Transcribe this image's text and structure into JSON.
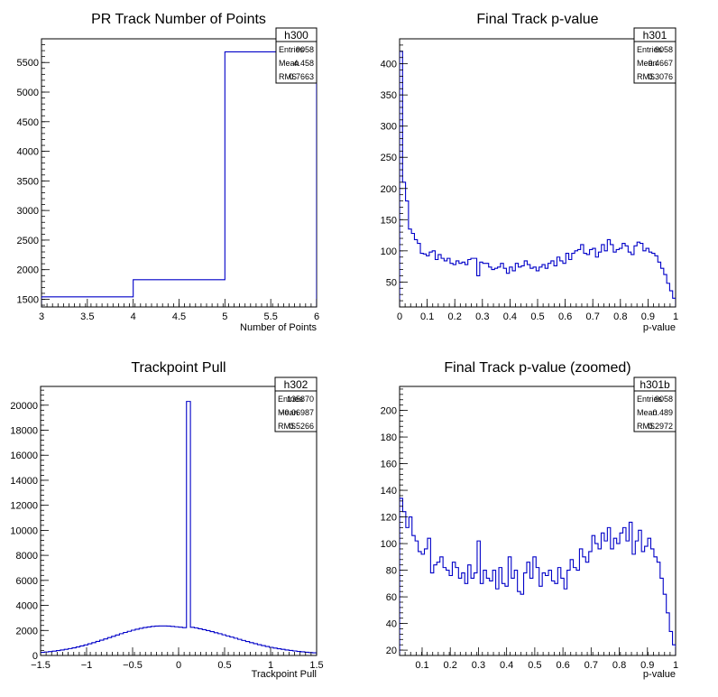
{
  "chart_data": [
    {
      "type": "histogram",
      "title": "PR Track Number of Points",
      "xlabel": "Number of Points",
      "ylabel": "",
      "xlim": [
        3,
        6
      ],
      "ylim": [
        1370,
        5900
      ],
      "xticks": [
        3,
        3.5,
        4,
        4.5,
        5,
        5.5,
        6
      ],
      "xtick_labels": [
        "3",
        "3.5",
        "4",
        "4.5",
        "5",
        "5.5",
        "6"
      ],
      "yticks": [
        1500,
        2000,
        2500,
        3000,
        3500,
        4000,
        4500,
        5000,
        5500
      ],
      "ytick_labels": [
        "1500",
        "2000",
        "2500",
        "3000",
        "3500",
        "4000",
        "4500",
        "5000",
        "5500"
      ],
      "bin_edges": [
        3,
        4,
        5,
        6
      ],
      "values": [
        1540,
        1830,
        5680
      ],
      "stats": {
        "name": "h300",
        "entries_label": "Entries",
        "entries": "9058",
        "mean_label": "Mean",
        "mean": "4.458",
        "rms_label": "RMS",
        "rms": "0.7663"
      }
    },
    {
      "type": "histogram",
      "title": "Final Track p-value",
      "xlabel": "p-value",
      "ylabel": "",
      "xlim": [
        0,
        1
      ],
      "ylim": [
        10,
        440
      ],
      "xticks": [
        0,
        0.1,
        0.2,
        0.3,
        0.4,
        0.5,
        0.6,
        0.7,
        0.8,
        0.9,
        1
      ],
      "xtick_labels": [
        "0",
        "0.1",
        "0.2",
        "0.3",
        "0.4",
        "0.5",
        "0.6",
        "0.7",
        "0.8",
        "0.9",
        "1"
      ],
      "yticks": [
        50,
        100,
        150,
        200,
        250,
        300,
        350,
        400
      ],
      "ytick_labels": [
        "50",
        "100",
        "150",
        "200",
        "250",
        "300",
        "350",
        "400"
      ],
      "bin_edges_range": [
        0,
        1
      ],
      "values": [
        420,
        210,
        180,
        135,
        128,
        118,
        112,
        96,
        95,
        92,
        98,
        100,
        86,
        94,
        88,
        84,
        88,
        80,
        78,
        84,
        80,
        82,
        78,
        86,
        88,
        88,
        60,
        82,
        80,
        80,
        74,
        70,
        72,
        74,
        80,
        72,
        64,
        74,
        68,
        80,
        74,
        76,
        84,
        78,
        72,
        74,
        68,
        74,
        78,
        72,
        80,
        84,
        76,
        90,
        84,
        80,
        96,
        86,
        96,
        100,
        102,
        110,
        96,
        94,
        102,
        104,
        90,
        98,
        110,
        100,
        118,
        110,
        98,
        102,
        104,
        112,
        108,
        98,
        94,
        108,
        114,
        112,
        100,
        104,
        98,
        96,
        92,
        82,
        72,
        62,
        48,
        36,
        24
      ],
      "stats": {
        "name": "h301",
        "entries_label": "Entries",
        "entries": "9058",
        "mean_label": "Mean",
        "mean": "0.4667",
        "rms_label": "RMS",
        "rms": "0.3076"
      }
    },
    {
      "type": "histogram",
      "title": "Trackpoint Pull",
      "xlabel": "Trackpoint Pull",
      "ylabel": "",
      "xlim": [
        -1.5,
        1.5
      ],
      "ylim": [
        0,
        21500
      ],
      "xticks": [
        -1.5,
        -1,
        -0.5,
        0,
        0.5,
        1,
        1.5
      ],
      "xtick_labels": [
        "−1.5",
        "−1",
        "−0.5",
        "0",
        "0.5",
        "1",
        "1.5"
      ],
      "yticks": [
        0,
        2000,
        4000,
        6000,
        8000,
        10000,
        12000,
        14000,
        16000,
        18000,
        20000
      ],
      "ytick_labels": [
        "0",
        "2000",
        "4000",
        "6000",
        "8000",
        "10000",
        "12000",
        "14000",
        "16000",
        "18000",
        "20000"
      ],
      "bin_edges_range": [
        -1.5,
        1.5
      ],
      "values": [
        250,
        280,
        310,
        350,
        390,
        440,
        490,
        550,
        610,
        680,
        760,
        840,
        930,
        1020,
        1120,
        1220,
        1320,
        1430,
        1530,
        1640,
        1740,
        1840,
        1930,
        2020,
        2100,
        2170,
        2230,
        2280,
        2320,
        2350,
        2360,
        2360,
        2350,
        2320,
        2290,
        2260,
        2220,
        20300,
        2250,
        2200,
        2130,
        2060,
        1990,
        1910,
        1820,
        1740,
        1650,
        1560,
        1470,
        1380,
        1290,
        1200,
        1110,
        1020,
        940,
        860,
        790,
        720,
        650,
        590,
        540,
        490,
        440,
        400,
        360,
        320,
        290,
        260,
        230,
        210
      ],
      "stats": {
        "name": "h302",
        "entries_label": "Entries",
        "entries": "135870",
        "mean_label": "Mean",
        "mean": "−0.06987",
        "rms_label": "RMS",
        "rms": "0.5266"
      }
    },
    {
      "type": "histogram",
      "title": "Final Track p-value (zoomed)",
      "xlabel": "p-value",
      "ylabel": "",
      "xlim": [
        0.02,
        1
      ],
      "ylim": [
        16,
        218
      ],
      "xticks": [
        0.1,
        0.2,
        0.3,
        0.4,
        0.5,
        0.6,
        0.7,
        0.8,
        0.9,
        1
      ],
      "xtick_labels": [
        "0.1",
        "0.2",
        "0.3",
        "0.4",
        "0.5",
        "0.6",
        "0.7",
        "0.8",
        "0.9",
        "1"
      ],
      "yticks": [
        20,
        40,
        60,
        80,
        100,
        120,
        140,
        160,
        180,
        200
      ],
      "ytick_labels": [
        "20",
        "40",
        "60",
        "80",
        "100",
        "120",
        "140",
        "160",
        "180",
        "200"
      ],
      "bin_edges_range": [
        0.02,
        1
      ],
      "values": [
        134,
        124,
        112,
        120,
        106,
        102,
        94,
        92,
        96,
        104,
        78,
        84,
        86,
        90,
        82,
        80,
        76,
        86,
        82,
        74,
        78,
        70,
        84,
        74,
        78,
        102,
        70,
        80,
        74,
        72,
        80,
        66,
        82,
        70,
        68,
        90,
        74,
        80,
        64,
        62,
        78,
        86,
        74,
        90,
        82,
        68,
        78,
        76,
        80,
        72,
        70,
        82,
        74,
        66,
        80,
        88,
        82,
        80,
        96,
        90,
        86,
        94,
        106,
        100,
        96,
        108,
        102,
        112,
        96,
        104,
        100,
        108,
        112,
        102,
        116,
        92,
        102,
        110,
        94,
        98,
        104,
        96,
        90,
        86,
        74,
        62,
        48,
        34,
        24
      ],
      "stats": {
        "name": "h301b",
        "entries_label": "Entries",
        "entries": "9058",
        "mean_label": "Mean",
        "mean": "0.489",
        "rms_label": "RMS",
        "rms": "0.2972"
      }
    }
  ]
}
